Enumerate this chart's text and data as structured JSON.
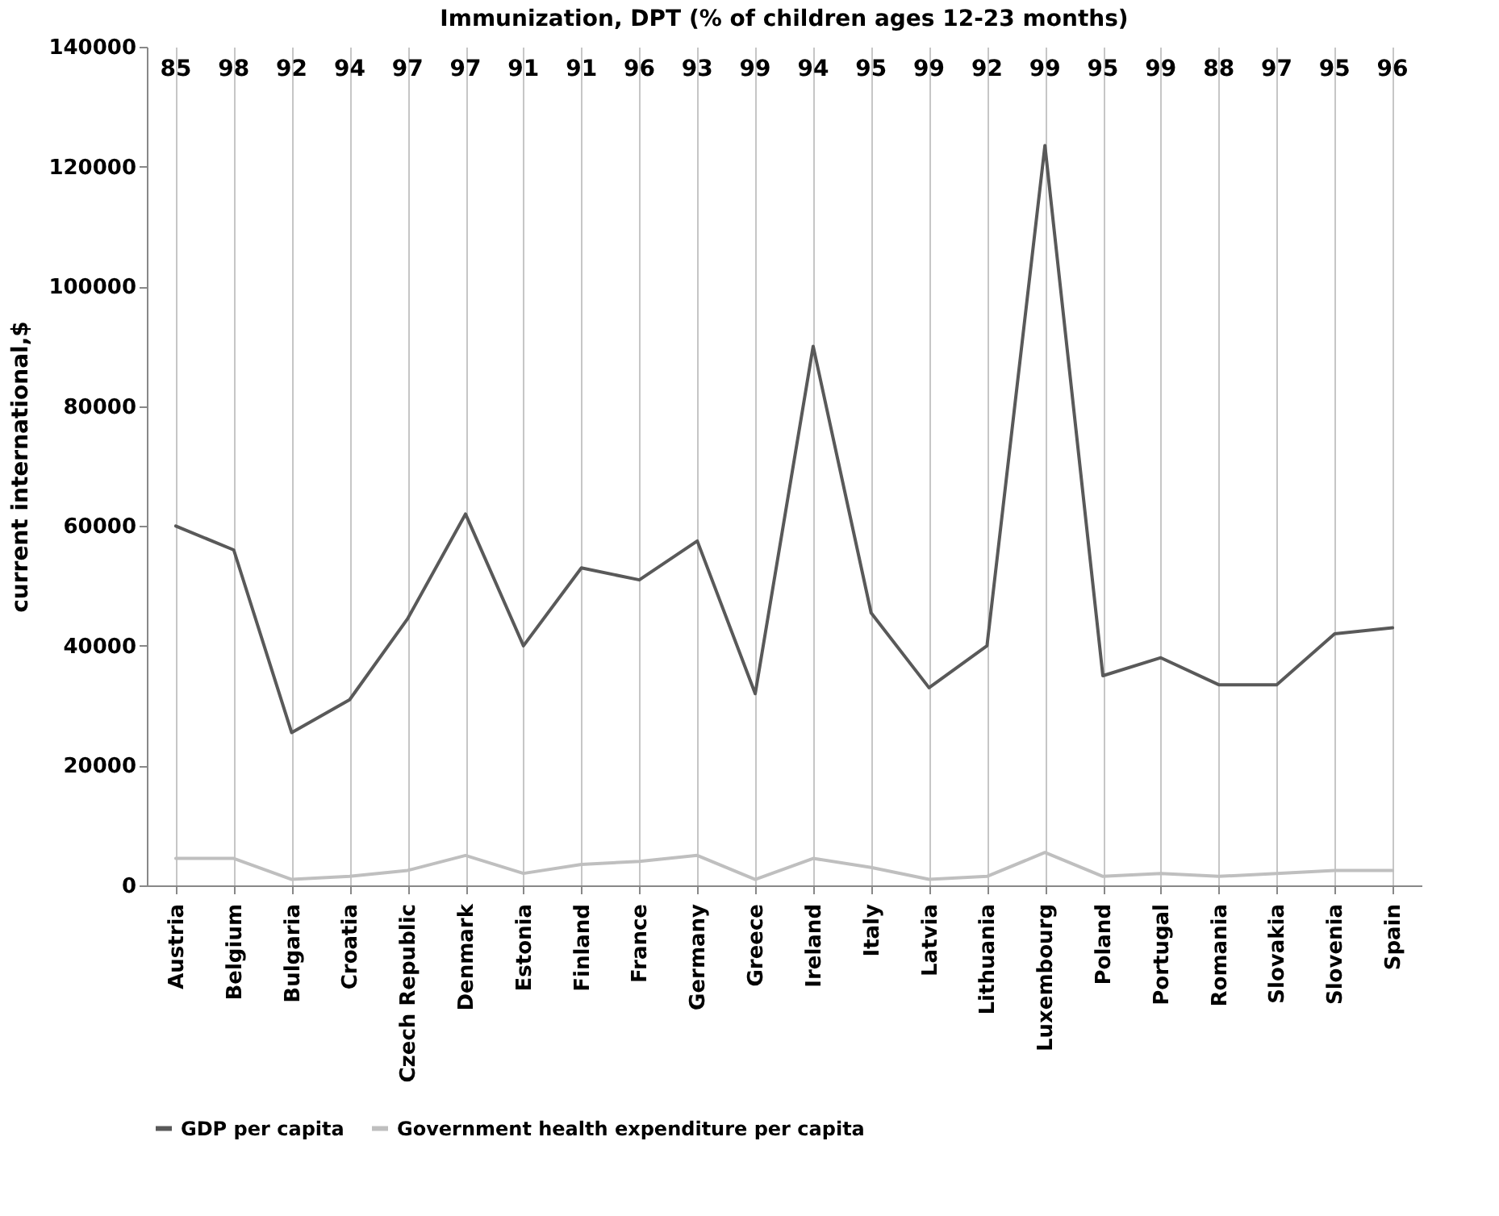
{
  "chart_data": {
    "type": "line",
    "title": "Immunization, DPT (% of children ages 12-23 months)",
    "ylabel": "current international,$",
    "categories": [
      "Austria",
      "Belgium",
      "Bulgaria",
      "Croatia",
      "Czech Republic",
      "Denmark",
      "Estonia",
      "Finland",
      "France",
      "Germany",
      "Greece",
      "Ireland",
      "Italy",
      "Latvia",
      "Lithuania",
      "Luxembourg",
      "Poland",
      "Portugal",
      "Romania",
      "Slovakia",
      "Slovenia",
      "Spain"
    ],
    "series": [
      {
        "name": "GDP per capita",
        "color": "#595959",
        "values": [
          60000,
          56000,
          25500,
          31000,
          44500,
          62000,
          40000,
          53000,
          51000,
          57500,
          32000,
          90000,
          45500,
          33000,
          40000,
          123500,
          35000,
          38000,
          33500,
          33500,
          42000,
          43000
        ]
      },
      {
        "name": "Government health expenditure per capita",
        "color": "#bfbfbf",
        "values": [
          4500,
          4500,
          1000,
          1500,
          2500,
          5000,
          2000,
          3500,
          4000,
          5000,
          1000,
          4500,
          3000,
          1000,
          1500,
          5500,
          1500,
          2000,
          1500,
          2000,
          2500,
          2500
        ]
      }
    ],
    "annotations": [
      "85",
      "98",
      "92",
      "94",
      "97",
      "97",
      "91",
      "91",
      "96",
      "93",
      "99",
      "94",
      "95",
      "99",
      "92",
      "99",
      "95",
      "99",
      "88",
      "97",
      "95",
      "96"
    ],
    "ylim": [
      0,
      140000
    ],
    "yticks": [
      0,
      20000,
      40000,
      60000,
      80000,
      100000,
      120000,
      140000
    ],
    "grid": "x",
    "legend": "bottom",
    "marker": "none",
    "line_style": "solid"
  }
}
